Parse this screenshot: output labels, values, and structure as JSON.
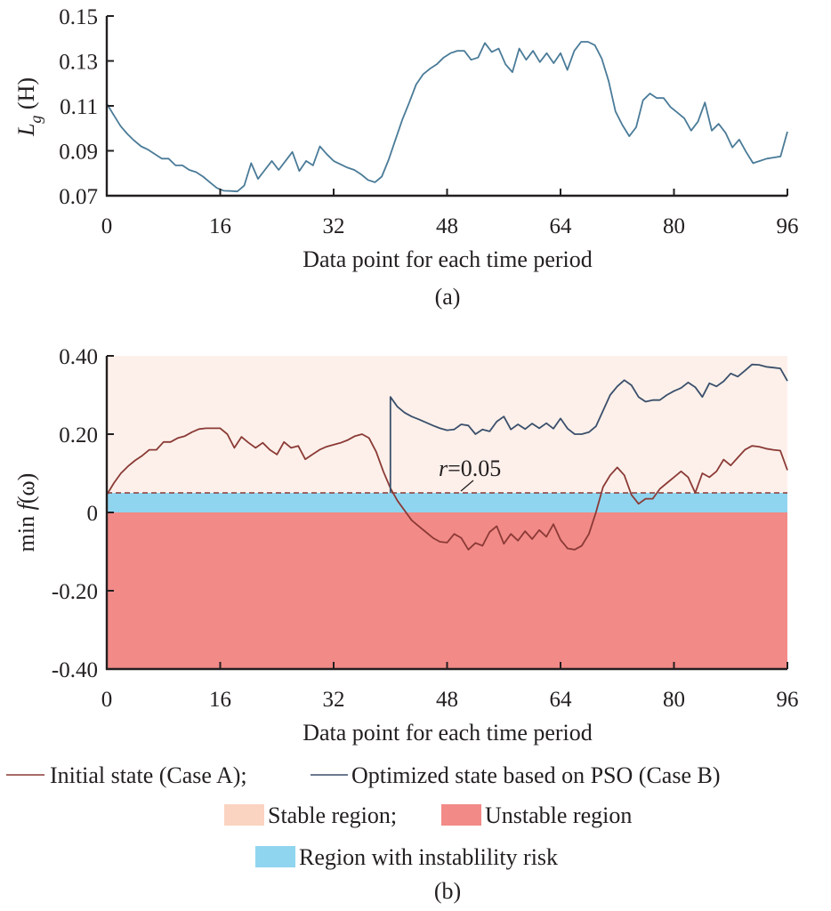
{
  "figure": {
    "colors": {
      "case_a": "#8b3a36",
      "case_b": "#3a4f6b",
      "lg_line": "#4a7b98",
      "stable": "#fdf0ea",
      "stable_legend": "#fbd3c1",
      "unstable": "#f28a87",
      "risk": "#90d5ef",
      "axis": "#231f20"
    }
  },
  "chart_data": [
    {
      "id": "a",
      "type": "line",
      "title": "",
      "caption": "(a)",
      "xlabel": "Data point for each time period",
      "ylabel_main": "L",
      "ylabel_sub": "g",
      "ylabel_unit": " (H)",
      "xlim": [
        0,
        96
      ],
      "ylim": [
        0.07,
        0.15
      ],
      "xticks": [
        0,
        16,
        32,
        48,
        64,
        80,
        96
      ],
      "xtick_labels": [
        "0",
        "16",
        "32",
        "48",
        "64",
        "80",
        "96"
      ],
      "yticks": [
        0.07,
        0.09,
        0.11,
        0.13,
        0.15
      ],
      "ytick_labels": [
        "0.07",
        "0.09",
        "0.11",
        "0.13",
        "0.15"
      ],
      "grid": false,
      "series": [
        {
          "name": "Lg",
          "values": [
            0.111,
            0.106,
            0.101,
            0.0975,
            0.0945,
            0.092,
            0.0905,
            0.0885,
            0.0865,
            0.0865,
            0.0835,
            0.0835,
            0.0815,
            0.0805,
            0.0785,
            0.076,
            0.0735,
            0.0722,
            0.0721,
            0.0719,
            0.0745,
            0.0845,
            0.0775,
            0.0815,
            0.0855,
            0.0815,
            0.0855,
            0.0895,
            0.081,
            0.0855,
            0.0835,
            0.092,
            0.0885,
            0.0855,
            0.084,
            0.0825,
            0.0815,
            0.0795,
            0.077,
            0.076,
            0.0785,
            0.086,
            0.095,
            0.104,
            0.1115,
            0.1195,
            0.124,
            0.1265,
            0.1285,
            0.1315,
            0.1335,
            0.1345,
            0.1345,
            0.1305,
            0.1315,
            0.138,
            0.134,
            0.1355,
            0.1285,
            0.125,
            0.1355,
            0.1305,
            0.1345,
            0.1295,
            0.1335,
            0.129,
            0.1335,
            0.126,
            0.1345,
            0.1385,
            0.1385,
            0.137,
            0.131,
            0.121,
            0.1075,
            0.1015,
            0.0965,
            0.1005,
            0.1125,
            0.1155,
            0.1135,
            0.1135,
            0.1095,
            0.107,
            0.1045,
            0.099,
            0.103,
            0.1115,
            0.099,
            0.102,
            0.098,
            0.0915,
            0.095,
            0.0895,
            0.0845,
            0.0855,
            0.0865,
            0.087,
            0.0875,
            0.0985
          ]
        }
      ]
    },
    {
      "id": "b",
      "type": "line",
      "title": "",
      "caption": "(b)",
      "xlabel": "Data point for each time period",
      "ylabel": "min f (ω)",
      "ylabel_prefix": "min ",
      "ylabel_func": "f",
      "ylabel_arg": "(ω)",
      "xlim": [
        0,
        96
      ],
      "ylim": [
        -0.4,
        0.4
      ],
      "xticks": [
        0,
        16,
        32,
        48,
        64,
        80,
        96
      ],
      "xtick_labels": [
        "0",
        "16",
        "32",
        "48",
        "64",
        "80",
        "96"
      ],
      "yticks": [
        -0.4,
        -0.2,
        0,
        0.2,
        0.4
      ],
      "ytick_labels": [
        "-0.40",
        "-0.20",
        "0",
        "0.20",
        "0.40"
      ],
      "grid": false,
      "regions": [
        {
          "name": "Stable region",
          "from": 0.05,
          "to": 0.4
        },
        {
          "name": "Region with instablility risk",
          "from": 0,
          "to": 0.05
        },
        {
          "name": "Unstable region",
          "from": -0.4,
          "to": 0
        }
      ],
      "threshold": {
        "value": 0.05,
        "label_var": "r",
        "label_rest": "=0.05"
      },
      "series": [
        {
          "name": "Initial state (Case A)",
          "x_start": 0,
          "values": [
            0.045,
            0.075,
            0.1,
            0.118,
            0.133,
            0.145,
            0.16,
            0.16,
            0.18,
            0.18,
            0.19,
            0.195,
            0.205,
            0.213,
            0.215,
            0.215,
            0.215,
            0.2,
            0.165,
            0.193,
            0.178,
            0.165,
            0.178,
            0.16,
            0.148,
            0.18,
            0.165,
            0.17,
            0.136,
            0.148,
            0.16,
            0.168,
            0.173,
            0.178,
            0.185,
            0.195,
            0.2,
            0.19,
            0.155,
            0.105,
            0.062,
            0.03,
            0.005,
            -0.02,
            -0.035,
            -0.05,
            -0.065,
            -0.075,
            -0.077,
            -0.055,
            -0.065,
            -0.095,
            -0.078,
            -0.085,
            -0.05,
            -0.035,
            -0.08,
            -0.055,
            -0.072,
            -0.048,
            -0.068,
            -0.045,
            -0.062,
            -0.03,
            -0.07,
            -0.092,
            -0.095,
            -0.085,
            -0.055,
            0.0,
            0.065,
            0.095,
            0.115,
            0.095,
            0.045,
            0.022,
            0.035,
            0.035,
            0.06,
            0.075,
            0.09,
            0.105,
            0.09,
            0.05,
            0.1,
            0.09,
            0.105,
            0.135,
            0.12,
            0.14,
            0.16,
            0.17,
            0.168,
            0.163,
            0.16,
            0.158,
            0.108
          ]
        },
        {
          "name": "Optimized state based on PSO (Case B)",
          "x_start": 40,
          "values_start_low": 0.05,
          "values": [
            0.295,
            0.27,
            0.255,
            0.245,
            0.238,
            0.23,
            0.222,
            0.215,
            0.21,
            0.212,
            0.225,
            0.222,
            0.2,
            0.212,
            0.207,
            0.232,
            0.245,
            0.212,
            0.225,
            0.213,
            0.227,
            0.215,
            0.228,
            0.214,
            0.24,
            0.214,
            0.2,
            0.2,
            0.205,
            0.22,
            0.26,
            0.3,
            0.322,
            0.338,
            0.325,
            0.295,
            0.283,
            0.287,
            0.287,
            0.3,
            0.31,
            0.318,
            0.332,
            0.32,
            0.295,
            0.33,
            0.322,
            0.335,
            0.355,
            0.347,
            0.362,
            0.378,
            0.377,
            0.372,
            0.37,
            0.368,
            0.336
          ]
        }
      ],
      "legend": {
        "placement": "bottom",
        "row1": [
          {
            "label": "Initial state (Case A);",
            "kind": "line",
            "color_key": "case_a"
          },
          {
            "label": "Optimized state based on PSO (Case B)",
            "kind": "line",
            "color_key": "case_b"
          }
        ],
        "row2": [
          {
            "label": "Stable region;",
            "kind": "patch",
            "color_key": "stable_legend"
          },
          {
            "label": "Unstable region",
            "kind": "patch",
            "color_key": "unstable"
          }
        ],
        "row3": [
          {
            "label": "Region with instablility risk",
            "kind": "patch",
            "color_key": "risk"
          }
        ]
      }
    }
  ]
}
